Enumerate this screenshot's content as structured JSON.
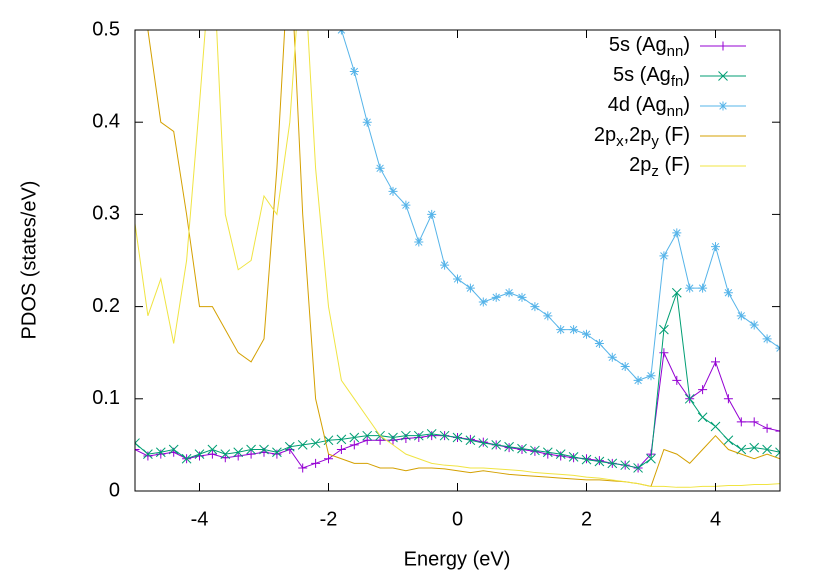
{
  "chart_data": {
    "type": "line",
    "x_label": "Energy (eV)",
    "y_label": "PDOS (states/eV)",
    "x": [
      -5,
      -4.8,
      -4.6,
      -4.4,
      -4.2,
      -4,
      -3.8,
      -3.6,
      -3.4,
      -3.2,
      -3,
      -2.8,
      -2.6,
      -2.4,
      -2.2,
      -2,
      -1.8,
      -1.6,
      -1.4,
      -1.2,
      -1,
      -0.8,
      -0.6,
      -0.4,
      -0.2,
      0,
      0.2,
      0.4,
      0.6,
      0.8,
      1,
      1.2,
      1.4,
      1.6,
      1.8,
      2,
      2.2,
      2.4,
      2.6,
      2.8,
      3,
      3.2,
      3.4,
      3.6,
      3.8,
      4,
      4.2,
      4.4,
      4.6,
      4.8,
      5
    ],
    "xlim": [
      -5,
      5
    ],
    "xticks": [
      -4,
      -2,
      0,
      2,
      4
    ],
    "ylim": [
      0,
      0.5
    ],
    "yticks": [
      0,
      0.1,
      0.2,
      0.3,
      0.4,
      0.5
    ],
    "legend": "top-right",
    "series": [
      {
        "name": "5s (Ag_{nn})",
        "color": "#9400d3",
        "marker": "plus",
        "values": [
          0.045,
          0.038,
          0.04,
          0.042,
          0.035,
          0.038,
          0.04,
          0.036,
          0.038,
          0.04,
          0.042,
          0.04,
          0.045,
          0.025,
          0.03,
          0.035,
          0.045,
          0.05,
          0.055,
          0.055,
          0.055,
          0.057,
          0.058,
          0.06,
          0.06,
          0.058,
          0.056,
          0.053,
          0.05,
          0.047,
          0.045,
          0.043,
          0.04,
          0.038,
          0.036,
          0.035,
          0.033,
          0.03,
          0.028,
          0.025,
          0.04,
          0.15,
          0.12,
          0.1,
          0.11,
          0.14,
          0.1,
          0.075,
          0.075,
          0.068,
          0.065
        ]
      },
      {
        "name": "5s (Ag_{fn})",
        "color": "#009e73",
        "marker": "cross",
        "values": [
          0.052,
          0.04,
          0.042,
          0.045,
          0.035,
          0.04,
          0.045,
          0.04,
          0.042,
          0.045,
          0.045,
          0.042,
          0.048,
          0.05,
          0.052,
          0.055,
          0.056,
          0.058,
          0.06,
          0.06,
          0.058,
          0.06,
          0.06,
          0.062,
          0.06,
          0.058,
          0.055,
          0.052,
          0.05,
          0.048,
          0.046,
          0.044,
          0.042,
          0.04,
          0.037,
          0.034,
          0.032,
          0.03,
          0.028,
          0.025,
          0.035,
          0.175,
          0.215,
          0.1,
          0.08,
          0.07,
          0.055,
          0.045,
          0.047,
          0.045,
          0.042
        ]
      },
      {
        "name": "4d (Ag_{nn})",
        "color": "#56b4e9",
        "marker": "star",
        "values": [
          null,
          null,
          null,
          null,
          null,
          null,
          null,
          null,
          null,
          null,
          null,
          null,
          null,
          null,
          null,
          0.56,
          0.5,
          0.455,
          0.4,
          0.35,
          0.325,
          0.31,
          0.27,
          0.3,
          0.245,
          0.23,
          0.22,
          0.205,
          0.21,
          0.215,
          0.21,
          0.2,
          0.19,
          0.175,
          0.175,
          0.17,
          0.16,
          0.145,
          0.135,
          0.12,
          0.125,
          0.255,
          0.28,
          0.22,
          0.22,
          0.265,
          0.215,
          0.19,
          0.18,
          0.165,
          0.155
        ]
      },
      {
        "name": "2p_x,2p_y (F)",
        "color": "#d4a000",
        "marker": "none",
        "values": [
          0.6,
          0.5,
          0.4,
          0.39,
          0.3,
          0.2,
          0.2,
          0.175,
          0.15,
          0.14,
          0.165,
          0.35,
          0.6,
          0.3,
          0.1,
          0.04,
          0.035,
          0.03,
          0.03,
          0.025,
          0.025,
          0.022,
          0.025,
          0.025,
          0.024,
          0.022,
          0.02,
          0.022,
          0.02,
          0.018,
          0.017,
          0.016,
          0.015,
          0.014,
          0.013,
          0.012,
          0.012,
          0.011,
          0.01,
          0.008,
          0.005,
          0.045,
          0.04,
          0.03,
          0.045,
          0.06,
          0.045,
          0.04,
          0.035,
          0.04,
          0.035
        ]
      },
      {
        "name": "2p_z (F)",
        "color": "#f0e442",
        "marker": "none",
        "values": [
          0.29,
          0.19,
          0.23,
          0.16,
          0.25,
          0.42,
          0.6,
          0.3,
          0.24,
          0.25,
          0.32,
          0.3,
          0.4,
          0.6,
          0.35,
          0.2,
          0.12,
          0.1,
          0.08,
          0.06,
          0.05,
          0.04,
          0.035,
          0.03,
          0.028,
          0.027,
          0.025,
          0.025,
          0.024,
          0.023,
          0.022,
          0.02,
          0.019,
          0.018,
          0.017,
          0.015,
          0.014,
          0.012,
          0.01,
          0.008,
          0.005,
          0.005,
          0.004,
          0.004,
          0.005,
          0.005,
          0.006,
          0.006,
          0.007,
          0.007,
          0.008
        ]
      }
    ]
  }
}
